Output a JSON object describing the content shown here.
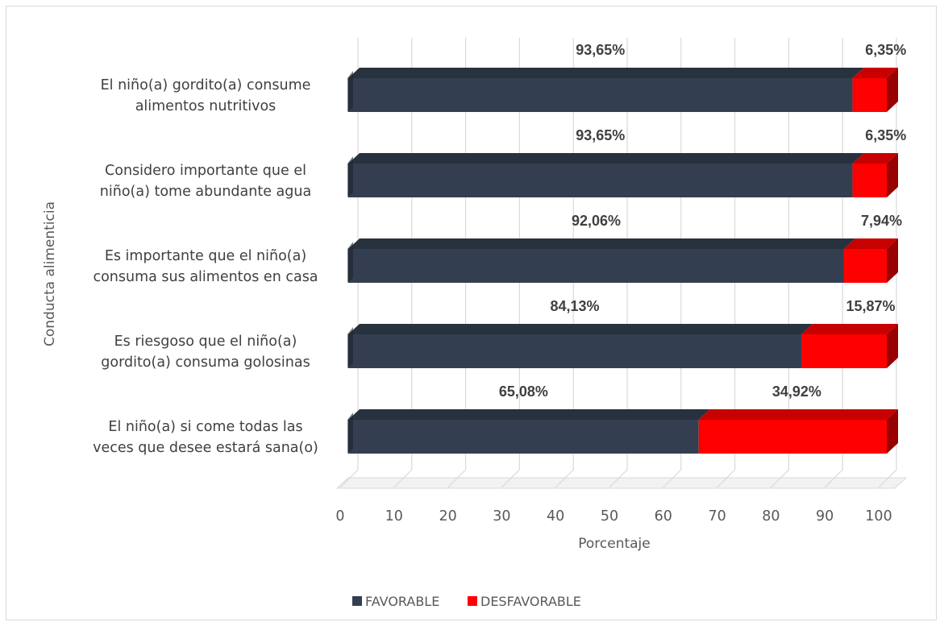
{
  "chart_data": {
    "type": "bar",
    "orientation": "horizontal",
    "stacked": true,
    "style": "3d",
    "categories": [
      [
        "El niño(a) gordito(a) consume",
        "alimentos  nutritivos"
      ],
      [
        "Considero importante que el",
        "niño(a) tome abundante agua"
      ],
      [
        "Es importante que  el niño(a)",
        "consuma sus alimentos en casa"
      ],
      [
        "Es riesgoso que el niño(a)",
        "gordito(a) consuma golosinas"
      ],
      [
        "El niño(a) si come todas las",
        "veces que desee  estará sana(o)"
      ]
    ],
    "series": [
      {
        "name": "FAVORABLE",
        "color": "#333F50",
        "values": [
          93.65,
          93.65,
          92.06,
          84.13,
          65.08
        ],
        "labels": [
          "93,65%",
          "93,65%",
          "92,06%",
          "84,13%",
          "65,08%"
        ]
      },
      {
        "name": "DESFAVORABLE",
        "color": "#FF0000",
        "values": [
          6.35,
          6.35,
          7.94,
          15.87,
          34.92
        ],
        "labels": [
          "6,35%",
          "6,35%",
          "7,94%",
          "15,87%",
          "34,92%"
        ]
      }
    ],
    "xlabel": "Porcentaje",
    "ylabel": "Conducta alimenticia",
    "xlim": [
      0,
      100
    ],
    "xticks": [
      "0",
      "10",
      "20",
      "30",
      "40",
      "50",
      "60",
      "70",
      "80",
      "90",
      "100"
    ],
    "grid": true,
    "legend": "bottom"
  }
}
